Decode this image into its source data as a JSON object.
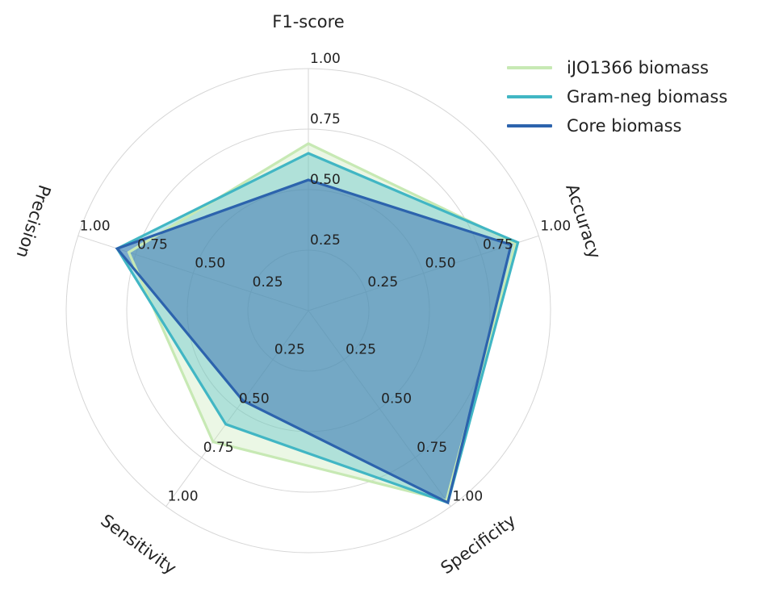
{
  "chart_data": {
    "type": "radar",
    "axes": [
      "F1-score",
      "Accuracy",
      "Specificity",
      "Sensitivity",
      "Precision"
    ],
    "radial_ticks": [
      "0.25",
      "0.50",
      "0.75",
      "1.00"
    ],
    "radial_tick_values": [
      0.25,
      0.5,
      0.75,
      1.0
    ],
    "rlim": [
      0,
      1
    ],
    "grid": true,
    "legend_position": "top-right",
    "series": [
      {
        "name": "iJO1366 biomass",
        "values": [
          0.69,
          0.9,
          0.97,
          0.67,
          0.78
        ],
        "color": "#c7e9b4"
      },
      {
        "name": "Gram-neg biomass",
        "values": [
          0.65,
          0.91,
          0.98,
          0.58,
          0.83
        ],
        "color": "#41b6c4"
      },
      {
        "name": "Core biomass",
        "values": [
          0.54,
          0.88,
          0.98,
          0.46,
          0.83
        ],
        "color": "#2c63ad"
      }
    ]
  }
}
